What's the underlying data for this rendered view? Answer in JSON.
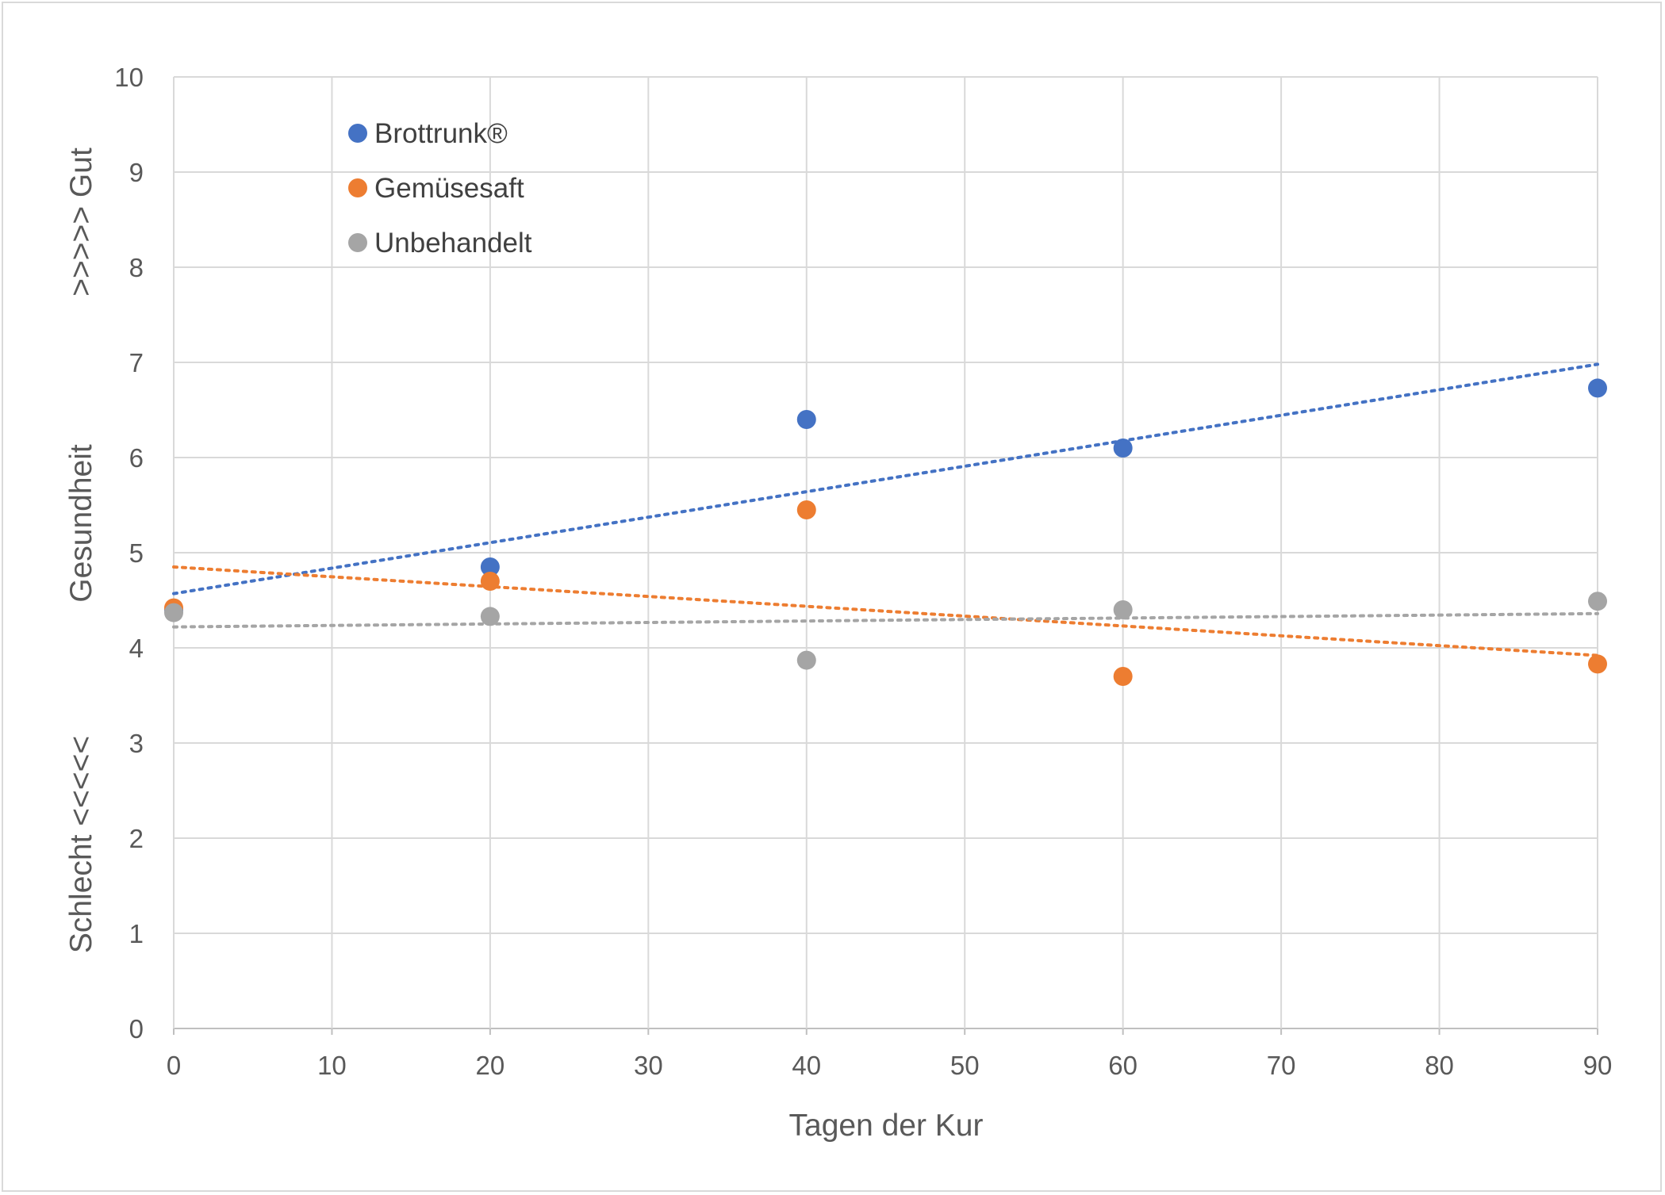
{
  "chart_data": {
    "type": "scatter",
    "xlabel": "Tagen der Kur",
    "ylabel": {
      "top": ">>>>> Gut",
      "middle": "Gesundheit",
      "bottom": "Schlecht <<<<<"
    },
    "xlim": [
      0,
      90
    ],
    "ylim": [
      0,
      10
    ],
    "x_ticks": [
      "0",
      "10",
      "20",
      "30",
      "40",
      "50",
      "60",
      "70",
      "80",
      "90"
    ],
    "y_ticks": [
      "0",
      "1",
      "2",
      "3",
      "4",
      "5",
      "6",
      "7",
      "8",
      "9",
      "10"
    ],
    "grid": true,
    "legend_position": "top-left",
    "trendlines": "linear, dotted",
    "series": [
      {
        "name": "Brottrunk®",
        "color": "#4472c4",
        "x": [
          0,
          20,
          40,
          60,
          90
        ],
        "y": [
          4.4,
          4.85,
          6.4,
          6.1,
          6.73
        ],
        "trend": [
          4.57,
          6.98
        ]
      },
      {
        "name": "Gemüsesaft",
        "color": "#ed7d31",
        "x": [
          0,
          20,
          40,
          60,
          90
        ],
        "y": [
          4.42,
          4.7,
          5.45,
          3.7,
          3.83
        ],
        "trend": [
          4.85,
          3.92
        ]
      },
      {
        "name": "Unbehandelt",
        "color": "#a5a5a5",
        "x": [
          0,
          20,
          40,
          60,
          90
        ],
        "y": [
          4.37,
          4.33,
          3.87,
          4.4,
          4.49
        ],
        "trend": [
          4.22,
          4.36
        ]
      }
    ]
  }
}
